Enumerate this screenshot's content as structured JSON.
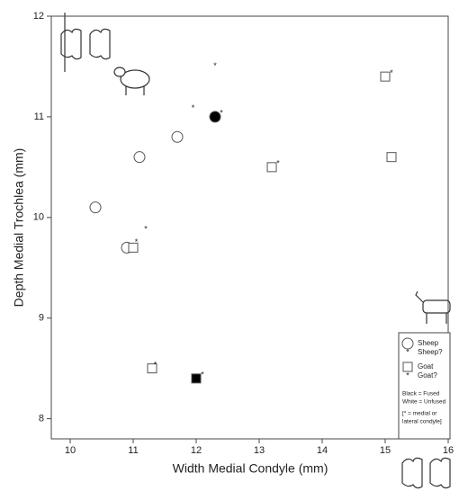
{
  "chart_data": {
    "type": "scatter",
    "x_label": "Width Medial Condyle (mm)",
    "y_label": "Depth Medial Trochlea (mm)",
    "xlim": [
      9.7,
      16
    ],
    "xticks": [
      10,
      11,
      12,
      13,
      14,
      15,
      16
    ],
    "ylim": [
      7.8,
      12
    ],
    "yticks": [
      8,
      9,
      10,
      11,
      12
    ],
    "series": [
      {
        "name": "Sheep",
        "marker": "circle",
        "color": "#000000",
        "x": [
          10.4,
          10.9,
          11.1,
          11.7,
          12.3
        ],
        "values": [
          10.1,
          9.7,
          10.6,
          10.8,
          11.0
        ],
        "fused": [
          false,
          false,
          false,
          false,
          true
        ]
      },
      {
        "name": "Sheep?",
        "marker": "star",
        "color": "#000000",
        "x": [
          11.95,
          12.3,
          11.2,
          12.4
        ],
        "values": [
          11.1,
          11.52,
          9.9,
          11.05
        ]
      },
      {
        "name": "Goat",
        "marker": "square",
        "color": "#000000",
        "x": [
          15.0,
          15.1,
          13.2,
          11.0,
          11.3,
          12.0
        ],
        "values": [
          11.4,
          10.6,
          10.5,
          9.7,
          8.5,
          8.4
        ],
        "fused": [
          false,
          false,
          false,
          false,
          false,
          true
        ]
      },
      {
        "name": "Goat?",
        "marker": "star",
        "color": "#000000",
        "x": [
          15.1,
          13.3,
          11.05,
          11.35,
          12.1
        ],
        "values": [
          11.45,
          10.55,
          9.77,
          8.55,
          8.45
        ]
      }
    ],
    "legend_notes": [
      "Black = Fused",
      "White = Unfused",
      "[* = medial or",
      "lateral condyle]"
    ]
  }
}
